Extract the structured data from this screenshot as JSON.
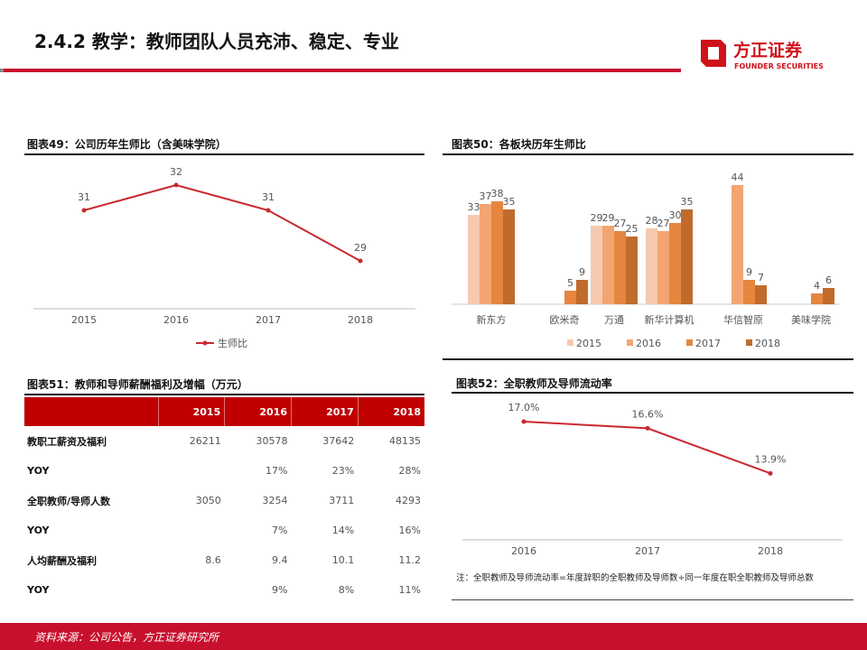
{
  "header": {
    "title": "2.4.2 教学：教师团队人员充沛、稳定、专业",
    "logo_cn": "方正证券",
    "logo_en": "FOUNDER SECURITIES",
    "brand_color": "#c8102e"
  },
  "footer": {
    "source": "资料来源：公司公告，方正证券研究所"
  },
  "chart_data": [
    {
      "type": "line",
      "title": "图表49：公司历年生师比（含美味学院）",
      "categories": [
        "2015",
        "2016",
        "2017",
        "2018"
      ],
      "series": [
        {
          "name": "生师比",
          "values": [
            31,
            32,
            31,
            29
          ],
          "color": "#c8282e"
        }
      ],
      "data_labels": [
        "31",
        "32",
        "31",
        "29"
      ],
      "legend": "bottom",
      "grid": false
    },
    {
      "type": "bar",
      "title": "图表50：各板块历年生师比",
      "categories": [
        "新东方",
        "欧米奇",
        "万通",
        "新华计算机",
        "华信智原",
        "美味学院"
      ],
      "series": [
        {
          "name": "2015",
          "values": [
            33,
            null,
            29,
            28,
            null,
            null
          ],
          "color": "#f6c9b0"
        },
        {
          "name": "2016",
          "values": [
            37,
            null,
            29,
            27,
            44,
            null
          ],
          "color": "#f3a571"
        },
        {
          "name": "2017",
          "values": [
            38,
            5,
            27,
            30,
            9,
            4
          ],
          "color": "#e5863f"
        },
        {
          "name": "2018",
          "values": [
            35,
            9,
            25,
            35,
            7,
            6
          ],
          "color": "#c06b2c"
        }
      ],
      "legend": "bottom",
      "grid": false
    },
    {
      "type": "table",
      "title": "图表51：教师和导师薪酬福利及增幅（万元）",
      "header_color": "#c00000",
      "columns": [
        "",
        "2015",
        "2016",
        "2017",
        "2018"
      ],
      "rows": [
        [
          "教职工薪资及福利",
          "26211",
          "30578",
          "37642",
          "48135"
        ],
        [
          "YOY",
          "",
          "17%",
          "23%",
          "28%"
        ],
        [
          "全职教师/导师人数",
          "3050",
          "3254",
          "3711",
          "4293"
        ],
        [
          "YOY",
          "",
          "7%",
          "14%",
          "16%"
        ],
        [
          "人均薪酬及福利",
          "8.6",
          "9.4",
          "10.1",
          "11.2"
        ],
        [
          "YOY",
          "",
          "9%",
          "8%",
          "11%"
        ]
      ]
    },
    {
      "type": "line",
      "title": "图表52：全职教师及导师流动率",
      "categories": [
        "2016",
        "2017",
        "2018"
      ],
      "series": [
        {
          "values": [
            17.0,
            16.6,
            13.9
          ],
          "color": "#c8282e"
        }
      ],
      "data_labels": [
        "17.0%",
        "16.6%",
        "13.9%"
      ],
      "note": "注：全职教师及导师流动率=年度辞职的全职教师及导师数÷同一年度在职全职教师及导师总数",
      "grid": false
    }
  ]
}
